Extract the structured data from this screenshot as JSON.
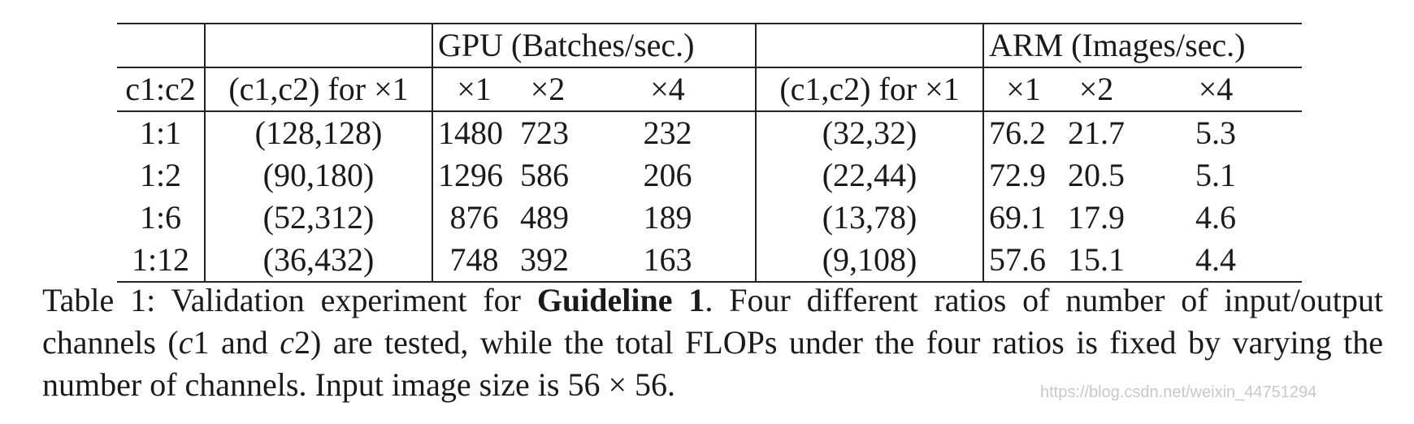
{
  "table": {
    "group_headers": {
      "gpu": "GPU (Batches/sec.)",
      "arm": "ARM (Images/sec.)"
    },
    "column_headers": {
      "ratio": "c1:c2",
      "gpu_config": "(c1,c2) for ×1",
      "gpu_x1": "×1",
      "gpu_x2": "×2",
      "gpu_x4": "×4",
      "arm_config": "(c1,c2) for ×1",
      "arm_x1": "×1",
      "arm_x2": "×2",
      "arm_x4": "×4"
    },
    "rows": [
      {
        "ratio": "1:1",
        "gpu_config": "(128,128)",
        "gpu_x1": "1480",
        "gpu_x2": "723",
        "gpu_x4": "232",
        "arm_config": "(32,32)",
        "arm_x1": "76.2",
        "arm_x2": "21.7",
        "arm_x4": "5.3"
      },
      {
        "ratio": "1:2",
        "gpu_config": "(90,180)",
        "gpu_x1": "1296",
        "gpu_x2": "586",
        "gpu_x4": "206",
        "arm_config": "(22,44)",
        "arm_x1": "72.9",
        "arm_x2": "20.5",
        "arm_x4": "5.1"
      },
      {
        "ratio": "1:6",
        "gpu_config": "(52,312)",
        "gpu_x1": "876",
        "gpu_x2": "489",
        "gpu_x4": "189",
        "arm_config": "(13,78)",
        "arm_x1": "69.1",
        "arm_x2": "17.9",
        "arm_x4": "4.6"
      },
      {
        "ratio": "1:12",
        "gpu_config": "(36,432)",
        "gpu_x1": "748",
        "gpu_x2": "392",
        "gpu_x4": "163",
        "arm_config": "(9,108)",
        "arm_x1": "57.6",
        "arm_x2": "15.1",
        "arm_x4": "4.4"
      }
    ]
  },
  "caption": {
    "label": "Table 1: Validation experiment for ",
    "bold": "Guideline 1",
    "text_a": ". Four different ratios of number of input/output channels (",
    "var_c1": "c",
    "num_1": "1 and ",
    "var_c2": "c",
    "text_b": "2) are tested, while the total FLOPs under the four ratios is fixed by varying the number of channels. Input image size is 56 × 56."
  },
  "watermark": "https://blog.csdn.net/weixin_44751294"
}
